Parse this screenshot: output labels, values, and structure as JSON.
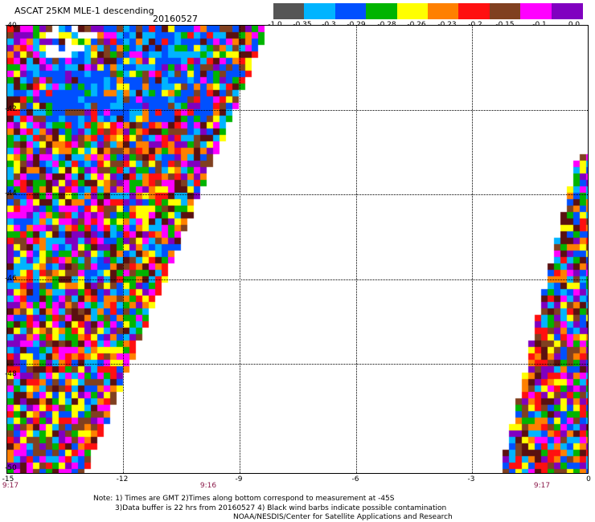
{
  "title": {
    "product": "ASCAT 25KM MLE-1 descending",
    "date": "20160527"
  },
  "colorbar": {
    "colors": [
      "#555555",
      "#00b4ff",
      "#0050ff",
      "#00b400",
      "#ffff00",
      "#ff8000",
      "#ff1010",
      "#804020",
      "#ff00ff",
      "#8000c0"
    ],
    "labels": [
      "-1.0",
      "-0.35",
      "-0.3",
      "-0.29",
      "-0.28",
      "-0.26",
      "-0.23",
      "-0.2",
      "-0.15",
      "-0.1",
      "0.0"
    ]
  },
  "map": {
    "lat_labels": [
      "-40",
      "-42",
      "-44",
      "-46",
      "-48",
      "-50"
    ],
    "lon_labels": [
      "-15",
      "-12",
      "-9",
      "-6",
      "-3",
      "0"
    ],
    "time_labels": [
      "9:17",
      "9:16",
      "9:17"
    ],
    "swath_colors": [
      "#ff1010",
      "#ffff00",
      "#ff00ff",
      "#8000c0",
      "#ff8000",
      "#804020",
      "#0050ff",
      "#00b400",
      "#00b4ff",
      "#5a1010"
    ]
  },
  "notes": {
    "line1": "Note: 1) Times are GMT 2)Times along bottom correspond to measurement at -45S",
    "line2": "3)Data buffer is 22 hrs from 20160527 4) Black wind barbs indicate possible contamination",
    "line3": "NOAA/NESDIS/Center for Satellite Applications and Research"
  }
}
